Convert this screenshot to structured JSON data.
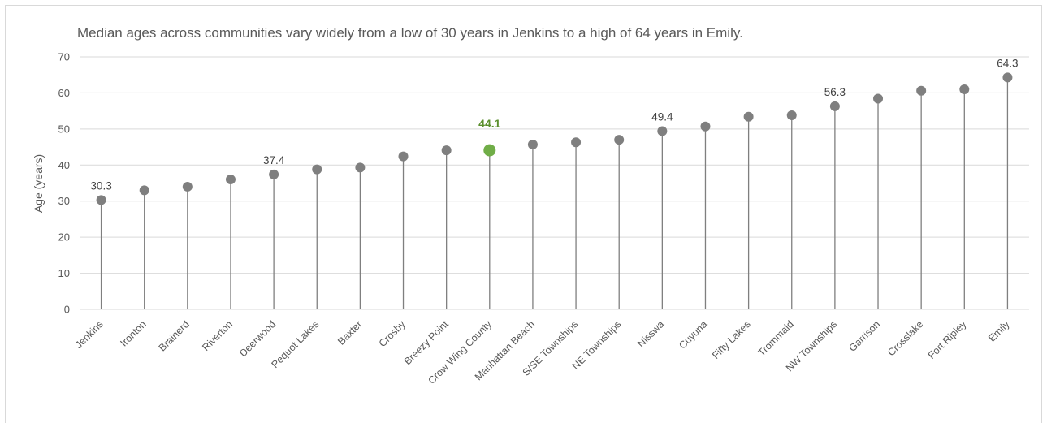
{
  "chart_data": {
    "type": "lollipop",
    "title": "Median ages across communities vary  widely from a low of 30 years in Jenkins to a high of 64 years in Emily.",
    "ylabel": "Age (years)",
    "xlabel": "",
    "ylim": [
      0,
      70
    ],
    "yticks": [
      0,
      10,
      20,
      30,
      40,
      50,
      60,
      70
    ],
    "grid": true,
    "categories": [
      "Jenkins",
      "Ironton",
      "Brainerd",
      "Riverton",
      "Deerwood",
      "Pequot Lakes",
      "Baxter",
      "Crosby",
      "Breezy Point",
      "Crow Wing County",
      "Manhattan Beach",
      "S/SE Townships",
      "NE Townships",
      "Nisswa",
      "Cuyuna",
      "Fifty Lakes",
      "Trommald",
      "NW Townships",
      "Garrison",
      "Crosslake",
      "Fort Ripley",
      "Emily"
    ],
    "values": [
      30.3,
      33.0,
      34.0,
      36.0,
      37.4,
      38.8,
      39.3,
      42.4,
      44.1,
      44.1,
      45.7,
      46.3,
      47.0,
      49.4,
      50.7,
      53.4,
      53.8,
      56.3,
      58.4,
      60.6,
      61.0,
      64.3
    ],
    "data_labels": [
      {
        "index": 0,
        "text": "30.3"
      },
      {
        "index": 4,
        "text": "37.4"
      },
      {
        "index": 9,
        "text": "44.1"
      },
      {
        "index": 13,
        "text": "49.4"
      },
      {
        "index": 17,
        "text": "56.3"
      },
      {
        "index": 21,
        "text": "64.3"
      }
    ],
    "highlight_index": 9,
    "colors": {
      "marker": "#7f7f7f",
      "highlight": "#70ad47",
      "stem": "#7f7f7f",
      "grid": "#d9d9d9",
      "highlight_label": "#5b8f2d"
    }
  }
}
